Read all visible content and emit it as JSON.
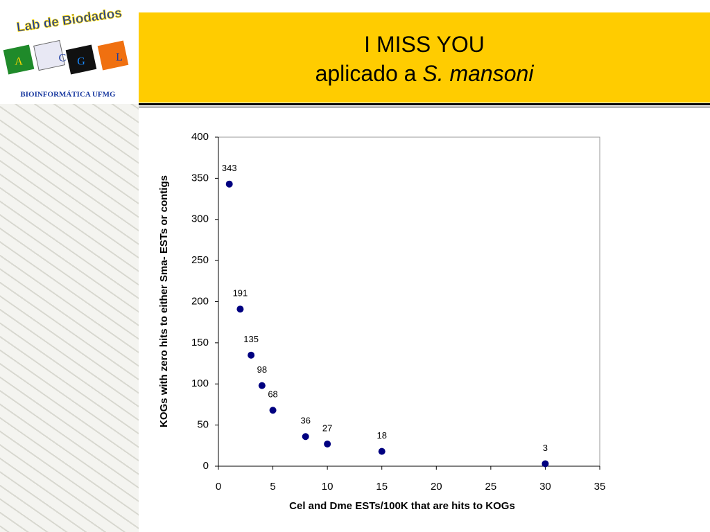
{
  "header": {
    "title_line1": "I MISS YOU",
    "title_line2_prefix": "aplicado a",
    "title_line2_italic": "S. mansoni"
  },
  "logo": {
    "name": "Lab de Biodados",
    "letters": [
      "A",
      "C",
      "G",
      "L"
    ],
    "subtitle": "BIOINFORMÁTICA UFMG"
  },
  "chart_data": {
    "type": "scatter",
    "x_label": "Cel and Dme ESTs/100K that are hits to KOGs",
    "y_label": "KOGs with zero hits to either Sma- ESTs or contigs",
    "series": [
      {
        "color": "#000080",
        "x": [
          1,
          2,
          3,
          4,
          5,
          8,
          10,
          15,
          30
        ],
        "values": [
          343,
          191,
          135,
          98,
          68,
          36,
          27,
          18,
          3
        ]
      }
    ],
    "xlim": [
      0,
      35
    ],
    "xticks": [
      0,
      5,
      10,
      15,
      20,
      25,
      30,
      35
    ],
    "ylim": [
      0,
      400
    ],
    "yticks": [
      0,
      50,
      100,
      150,
      200,
      250,
      300,
      350,
      400
    ],
    "grid": false
  }
}
